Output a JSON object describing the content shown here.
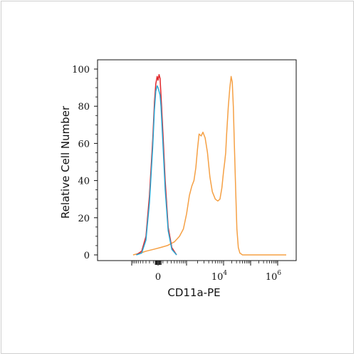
{
  "chart_data": {
    "type": "line",
    "xlabel": "CD11a-PE",
    "ylabel": "Relative Cell Number",
    "ylim": [
      0,
      100
    ],
    "x_scale": "biexponential",
    "x_ticks": [
      {
        "label": "0",
        "value": 0
      },
      {
        "base": "10",
        "exponent": "4",
        "value": 10000
      },
      {
        "base": "10",
        "exponent": "6",
        "value": 1000000
      }
    ],
    "y_ticks": [
      0,
      20,
      40,
      60,
      80,
      100
    ],
    "grid": false,
    "legend": "none",
    "series": [
      {
        "color": "#e0262a",
        "points": [
          [
            -700,
            0
          ],
          [
            -450,
            2
          ],
          [
            -300,
            10
          ],
          [
            -200,
            32
          ],
          [
            -120,
            62
          ],
          [
            -80,
            82
          ],
          [
            -50,
            92
          ],
          [
            -20,
            96
          ],
          [
            0,
            94
          ],
          [
            20,
            97
          ],
          [
            40,
            95
          ],
          [
            60,
            86
          ],
          [
            100,
            66
          ],
          [
            150,
            40
          ],
          [
            220,
            15
          ],
          [
            320,
            4
          ],
          [
            480,
            0
          ]
        ]
      },
      {
        "color": "#29a9d6",
        "points": [
          [
            -700,
            0
          ],
          [
            -450,
            1
          ],
          [
            -300,
            8
          ],
          [
            -200,
            28
          ],
          [
            -120,
            58
          ],
          [
            -80,
            78
          ],
          [
            -50,
            88
          ],
          [
            -20,
            91
          ],
          [
            0,
            90
          ],
          [
            20,
            88
          ],
          [
            40,
            86
          ],
          [
            60,
            80
          ],
          [
            100,
            60
          ],
          [
            150,
            35
          ],
          [
            220,
            13
          ],
          [
            320,
            3
          ],
          [
            480,
            0
          ]
        ]
      },
      {
        "color": "#f5a044",
        "points": [
          [
            -900,
            0
          ],
          [
            -500,
            1
          ],
          [
            -300,
            2
          ],
          [
            -100,
            3
          ],
          [
            50,
            4
          ],
          [
            200,
            5
          ],
          [
            400,
            7
          ],
          [
            600,
            10
          ],
          [
            800,
            14
          ],
          [
            1000,
            22
          ],
          [
            1200,
            32
          ],
          [
            1400,
            37
          ],
          [
            1600,
            40
          ],
          [
            1800,
            47
          ],
          [
            2000,
            57
          ],
          [
            2200,
            65
          ],
          [
            2500,
            64
          ],
          [
            2800,
            66
          ],
          [
            3200,
            63
          ],
          [
            3700,
            55
          ],
          [
            4300,
            42
          ],
          [
            5000,
            34
          ],
          [
            6000,
            30
          ],
          [
            7000,
            29
          ],
          [
            8000,
            30
          ],
          [
            9000,
            36
          ],
          [
            10000,
            45
          ],
          [
            11000,
            50
          ],
          [
            12000,
            55
          ],
          [
            13000,
            65
          ],
          [
            15000,
            80
          ],
          [
            17000,
            90
          ],
          [
            19000,
            96
          ],
          [
            21000,
            93
          ],
          [
            23000,
            80
          ],
          [
            25000,
            60
          ],
          [
            28000,
            35
          ],
          [
            31000,
            14
          ],
          [
            35000,
            4
          ],
          [
            40000,
            1
          ],
          [
            50000,
            0
          ],
          [
            2000000,
            0
          ]
        ]
      }
    ]
  }
}
